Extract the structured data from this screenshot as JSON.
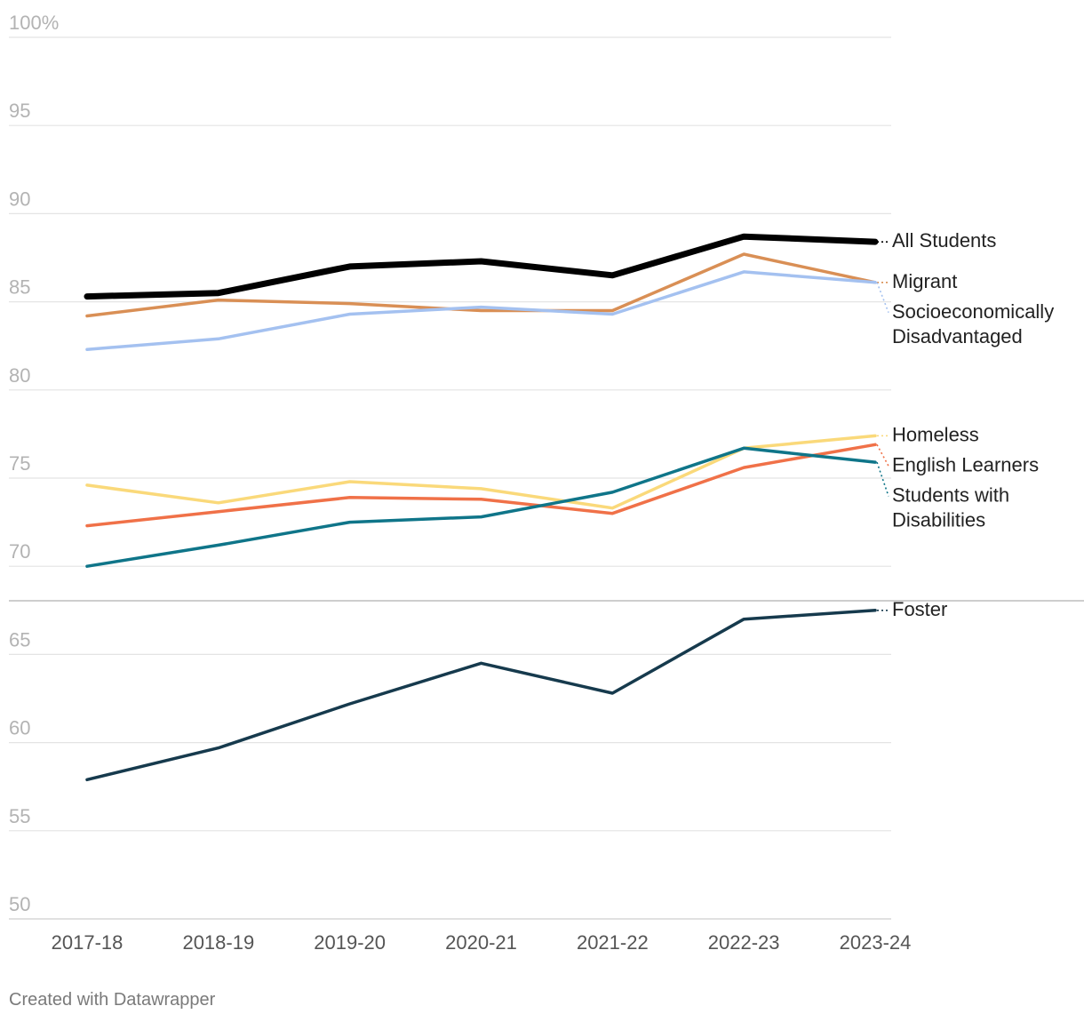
{
  "chart_data": {
    "type": "line",
    "title": "",
    "xlabel": "",
    "ylabel": "",
    "y_unit_suffix": "%",
    "ylim": [
      50,
      100
    ],
    "yticks": [
      50,
      55,
      60,
      65,
      70,
      75,
      80,
      85,
      90,
      95,
      100
    ],
    "grid": true,
    "categories": [
      "2017-18",
      "2018-19",
      "2019-20",
      "2020-21",
      "2021-22",
      "2022-23",
      "2023-24"
    ],
    "series": [
      {
        "name": "All Students",
        "label_lines": [
          "All Students"
        ],
        "color": "#000000",
        "width": 7,
        "values": [
          85.3,
          85.5,
          87.0,
          87.3,
          86.5,
          88.7,
          88.4
        ]
      },
      {
        "name": "Migrant",
        "label_lines": [
          "Migrant"
        ],
        "color": "#d98f55",
        "width": 3.5,
        "values": [
          84.2,
          85.1,
          84.9,
          84.5,
          84.5,
          87.7,
          86.1
        ]
      },
      {
        "name": "Socioeconomically Disadvantaged",
        "label_lines": [
          "Socioeconomically",
          "Disadvantaged"
        ],
        "color": "#a4c1f0",
        "width": 3.5,
        "values": [
          82.3,
          82.9,
          84.3,
          84.7,
          84.3,
          86.7,
          86.1
        ]
      },
      {
        "name": "Homeless",
        "label_lines": [
          "Homeless"
        ],
        "color": "#fad97a",
        "width": 3.5,
        "values": [
          74.6,
          73.6,
          74.8,
          74.4,
          73.3,
          76.7,
          77.4
        ]
      },
      {
        "name": "English Learners",
        "label_lines": [
          "English Learners"
        ],
        "color": "#f07148",
        "width": 3.5,
        "values": [
          72.3,
          73.1,
          73.9,
          73.8,
          73.0,
          75.6,
          76.9
        ]
      },
      {
        "name": "Students with Disabilities",
        "label_lines": [
          "Students with",
          "Disabilities"
        ],
        "color": "#0f7589",
        "width": 3.5,
        "values": [
          70.0,
          71.2,
          72.5,
          72.8,
          74.2,
          76.7,
          75.9
        ]
      },
      {
        "name": "Foster",
        "label_lines": [
          "Foster"
        ],
        "color": "#163a4d",
        "width": 3.5,
        "values": [
          57.9,
          59.7,
          62.2,
          64.5,
          62.8,
          67.0,
          67.5
        ]
      }
    ]
  },
  "footer": "Created with Datawrapper"
}
